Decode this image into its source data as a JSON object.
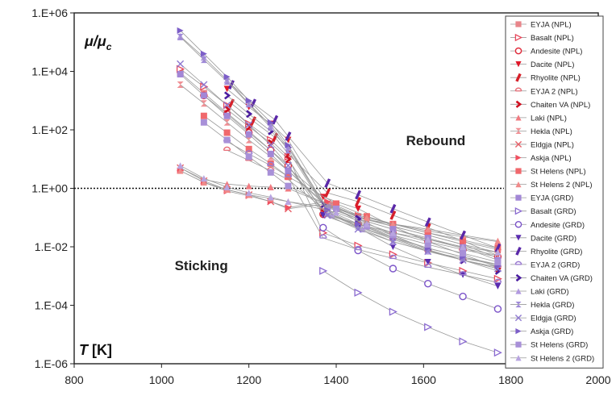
{
  "chart_data": {
    "type": "scatter",
    "title": "",
    "xlabel": "T [K]",
    "ylabel": "μ/μc",
    "xlim": [
      800,
      2000
    ],
    "ylim": [
      1e-06,
      1000000.0
    ],
    "y_scale": "log",
    "x_ticks": [
      800,
      1000,
      1200,
      1400,
      1600,
      1800,
      2000
    ],
    "x_tick_labels": [
      "800",
      "1000",
      "1200",
      "1400",
      "1600",
      "1800",
      "2000"
    ],
    "y_ticks": [
      1e-06,
      0.0001,
      0.01,
      1,
      100,
      10000,
      1000000
    ],
    "y_tick_labels": [
      "1.E-06",
      "1.E-04",
      "1.E-02",
      "1.E+00",
      "1.E+02",
      "1.E+04",
      "1.E+06"
    ],
    "reference_line_y": 1,
    "annotations": [
      {
        "id": "rebound",
        "text": "Rebound",
        "x": 1560,
        "y": 30
      },
      {
        "id": "sticking",
        "text": "Sticking",
        "x": 1030,
        "y": 0.0016
      }
    ],
    "legend_position": "right",
    "series": [
      {
        "name": "EYJA (NPL)",
        "color": "#e8858a",
        "marker": "square",
        "x": [
          1043,
          1097,
          1150,
          1200,
          1250,
          1290,
          1390,
          1450,
          1530,
          1610,
          1690,
          1770
        ],
        "y": [
          9000,
          1800,
          380,
          90,
          20,
          5,
          0.27,
          0.11,
          0.05,
          0.025,
          0.012,
          0.0042
        ]
      },
      {
        "name": "Basalt (NPL)",
        "color": "#e8485c",
        "marker": "triangle-right-open",
        "x": [
          1043,
          1097,
          1150,
          1200,
          1250,
          1290,
          1370,
          1450,
          1530,
          1610,
          1690,
          1770
        ],
        "y": [
          12000,
          3000,
          700,
          160,
          45,
          12,
          0.03,
          0.011,
          0.0055,
          0.0028,
          0.0015,
          0.0008
        ]
      },
      {
        "name": "Andesite (NPL)",
        "color": "#e02a3a",
        "marker": "circle-open",
        "x": [
          1097,
          1150,
          1200,
          1250,
          1290,
          1370,
          1450,
          1530,
          1610,
          1690,
          1770
        ],
        "y": [
          1500,
          350,
          80,
          20,
          6,
          0.13,
          0.06,
          0.03,
          0.015,
          0.008,
          0.0045
        ]
      },
      {
        "name": "Dacite (NPL)",
        "color": "#e0182a",
        "marker": "triangle-down",
        "x": [
          1150,
          1200,
          1250,
          1290,
          1370,
          1450,
          1530,
          1610,
          1690,
          1770
        ],
        "y": [
          2500,
          600,
          160,
          45,
          0.5,
          0.2,
          0.05,
          0.015,
          0.0055,
          0.002
        ]
      },
      {
        "name": "Rhyolite (NPL)",
        "color": "#d6202a",
        "marker": "slash",
        "x": [
          1160,
          1210,
          1260,
          1290,
          1380,
          1450,
          1530,
          1610,
          1690,
          1770
        ],
        "y": [
          800,
          200,
          55,
          15,
          0.7,
          0.35,
          0.12,
          0.045,
          0.016,
          0.005
        ]
      },
      {
        "name": "EYJA 2 (NPL)",
        "color": "#e8707a",
        "marker": "circle-dot",
        "x": [
          1150,
          1200,
          1250,
          1290,
          1370,
          1450,
          1530,
          1610,
          1690,
          1770
        ],
        "y": [
          20,
          9,
          4,
          2,
          0.2,
          0.05,
          0.018,
          0.007,
          0.0035,
          0.002
        ]
      },
      {
        "name": "Chaiten VA (NPL)",
        "color": "#d01020",
        "marker": "chevron-right",
        "x": [
          1150,
          1200,
          1250,
          1290,
          1370,
          1450,
          1530,
          1610,
          1690,
          1770
        ],
        "y": [
          500,
          130,
          35,
          10,
          0.15,
          0.06,
          0.02,
          0.0075,
          0.0035,
          0.0018
        ]
      },
      {
        "name": "Laki (NPL)",
        "color": "#f07a80",
        "marker": "triangle-up",
        "x": [
          1043,
          1097,
          1150,
          1200,
          1250,
          1290,
          1400,
          1470,
          1530,
          1610,
          1690,
          1770
        ],
        "y": [
          5,
          2,
          1.4,
          1.2,
          1.1,
          1.0,
          0.2,
          0.085,
          0.06,
          0.035,
          0.022,
          0.015
        ]
      },
      {
        "name": "Hekla (NPL)",
        "color": "#f09095",
        "marker": "bowtie",
        "x": [
          1043,
          1097,
          1150,
          1200,
          1250,
          1290,
          1380,
          1450,
          1530,
          1610,
          1690,
          1770
        ],
        "y": [
          3500,
          800,
          180,
          45,
          12,
          4,
          0.25,
          0.09,
          0.04,
          0.018,
          0.009,
          0.005
        ]
      },
      {
        "name": "Eldgja (NPL)",
        "color": "#e86068",
        "marker": "x",
        "x": [
          1043,
          1097,
          1150,
          1200,
          1250,
          1290,
          1380,
          1450,
          1530,
          1610,
          1690,
          1770
        ],
        "y": [
          5,
          1.8,
          0.9,
          0.6,
          0.35,
          0.2,
          0.3,
          0.1,
          0.05,
          0.025,
          0.012,
          0.0065
        ]
      },
      {
        "name": "Askja (NPL)",
        "color": "#f05060",
        "marker": "triangle-right",
        "x": [
          1043,
          1097,
          1150,
          1200,
          1250,
          1290,
          1380,
          1450,
          1530,
          1610,
          1690,
          1770
        ],
        "y": [
          4,
          1.6,
          0.8,
          0.55,
          0.35,
          0.22,
          0.35,
          0.12,
          0.06,
          0.03,
          0.015,
          0.008
        ]
      },
      {
        "name": "St Helens (NPL)",
        "color": "#f0686c",
        "marker": "square",
        "x": [
          1097,
          1150,
          1200,
          1250,
          1290,
          1400,
          1470,
          1530,
          1610,
          1690,
          1770
        ],
        "y": [
          300,
          80,
          22,
          7,
          2.5,
          0.3,
          0.11,
          0.06,
          0.03,
          0.017,
          0.009
        ]
      },
      {
        "name": "St Helens 2 (NPL)",
        "color": "#f08a8a",
        "marker": "triangle-up",
        "x": [
          1043,
          1097,
          1150,
          1200,
          1250,
          1290,
          1400,
          1470,
          1530,
          1610,
          1690,
          1770
        ],
        "y": [
          4,
          1.6,
          0.9,
          0.6,
          0.45,
          0.35,
          0.2,
          0.1,
          0.06,
          0.04,
          0.025,
          0.016
        ]
      },
      {
        "name": "EYJA (GRD)",
        "color": "#a287d6",
        "marker": "square",
        "x": [
          1043,
          1097,
          1150,
          1200,
          1250,
          1290,
          1380,
          1450,
          1530,
          1610,
          1690,
          1770
        ],
        "y": [
          8000,
          1500,
          300,
          70,
          15,
          4,
          0.22,
          0.09,
          0.04,
          0.02,
          0.0095,
          0.0035
        ]
      },
      {
        "name": "Basalt (GRD)",
        "color": "#8a6ad0",
        "marker": "triangle-right-open",
        "x": [
          1370,
          1450,
          1530,
          1610,
          1690,
          1770
        ],
        "y": [
          0.0015,
          0.00027,
          6e-05,
          1.8e-05,
          5.8e-06,
          2.4e-06
        ]
      },
      {
        "name": "Andesite (GRD)",
        "color": "#7a52c8",
        "marker": "circle-open",
        "x": [
          1370,
          1450,
          1530,
          1610,
          1690,
          1770
        ],
        "y": [
          0.045,
          0.0075,
          0.0018,
          0.00055,
          0.0002,
          7.5e-05
        ]
      },
      {
        "name": "Dacite (GRD)",
        "color": "#5a2cb0",
        "marker": "triangle-down",
        "x": [
          1370,
          1450,
          1530,
          1610,
          1690,
          1770
        ],
        "y": [
          0.12,
          0.045,
          0.01,
          0.003,
          0.0011,
          0.00045
        ]
      },
      {
        "name": "Rhyolite (GRD)",
        "color": "#5a28a8",
        "marker": "slash",
        "x": [
          1160,
          1210,
          1260,
          1290,
          1380,
          1450,
          1530,
          1610,
          1690,
          1770
        ],
        "y": [
          3500,
          800,
          220,
          60,
          1.5,
          0.6,
          0.2,
          0.07,
          0.025,
          0.009
        ]
      },
      {
        "name": "EYJA 2 (GRD)",
        "color": "#9a7ad0",
        "marker": "circle-dot",
        "x": [
          1150,
          1200,
          1250,
          1290,
          1370,
          1450,
          1530,
          1610,
          1690,
          1770
        ],
        "y": [
          40,
          15,
          6,
          2.5,
          0.02,
          0.008,
          0.004,
          0.002,
          0.0011,
          0.0006
        ]
      },
      {
        "name": "Chaiten VA (GRD)",
        "color": "#4a1ca0",
        "marker": "chevron-right",
        "x": [
          1150,
          1200,
          1250,
          1290,
          1370,
          1450,
          1530,
          1610,
          1690,
          1770
        ],
        "y": [
          1500,
          350,
          90,
          25,
          0.28,
          0.09,
          0.025,
          0.008,
          0.0035,
          0.0015
        ]
      },
      {
        "name": "Laki (GRD)",
        "color": "#b29ae0",
        "marker": "triangle-up",
        "x": [
          1043,
          1097,
          1150,
          1200,
          1250,
          1290,
          1390,
          1460,
          1530,
          1610,
          1690,
          1770
        ],
        "y": [
          160000,
          30000,
          5000,
          800,
          140,
          25,
          0.12,
          0.04,
          0.015,
          0.007,
          0.004,
          0.0025
        ]
      },
      {
        "name": "Hekla (GRD)",
        "color": "#9e88d8",
        "marker": "bowtie",
        "x": [
          1043,
          1097,
          1150,
          1200,
          1250,
          1290,
          1380,
          1450,
          1530,
          1610,
          1690,
          1770
        ],
        "y": [
          150000,
          25000,
          4500,
          750,
          120,
          20,
          0.15,
          0.05,
          0.02,
          0.009,
          0.0045,
          0.0025
        ]
      },
      {
        "name": "Eldgja (GRD)",
        "color": "#8e78d0",
        "marker": "x",
        "x": [
          1043,
          1097,
          1150,
          1200,
          1250,
          1290,
          1380,
          1450,
          1530,
          1610,
          1690,
          1770
        ],
        "y": [
          18000,
          3500,
          700,
          150,
          30,
          6,
          0.12,
          0.04,
          0.015,
          0.007,
          0.0035,
          0.0018
        ]
      },
      {
        "name": "Askja (GRD)",
        "color": "#7c5ec8",
        "marker": "triangle-right",
        "x": [
          1043,
          1097,
          1150,
          1200,
          1250,
          1290,
          1380,
          1450,
          1530,
          1610,
          1690,
          1770
        ],
        "y": [
          250000,
          40000,
          6500,
          1000,
          180,
          30,
          0.18,
          0.06,
          0.022,
          0.009,
          0.0045,
          0.0022
        ]
      },
      {
        "name": "St Helens (GRD)",
        "color": "#a890d8",
        "marker": "square",
        "x": [
          1097,
          1150,
          1200,
          1250,
          1290,
          1400,
          1470,
          1530,
          1610,
          1690,
          1770
        ],
        "y": [
          180,
          45,
          12,
          3.5,
          1.2,
          0.2,
          0.05,
          0.025,
          0.012,
          0.006,
          0.003
        ]
      },
      {
        "name": "St Helens 2 (GRD)",
        "color": "#b8a4e0",
        "marker": "triangle-up",
        "x": [
          1043,
          1097,
          1150,
          1200,
          1250,
          1290,
          1400,
          1470,
          1530,
          1610,
          1690,
          1770
        ],
        "y": [
          6,
          2.2,
          1.1,
          0.7,
          0.5,
          0.35,
          0.15,
          0.06,
          0.03,
          0.018,
          0.01,
          0.0065
        ]
      }
    ]
  }
}
